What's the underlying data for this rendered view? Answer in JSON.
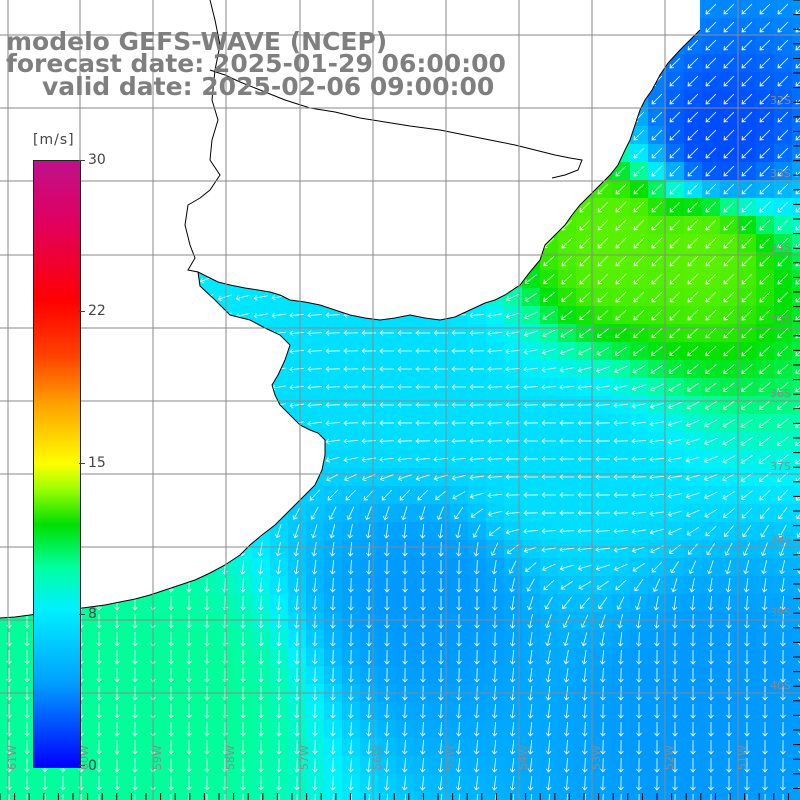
{
  "title": {
    "model": "modelo GEFS-WAVE (NCEP)",
    "forecast": "forecast date: 2025-01-29 06:00:00",
    "valid": "valid date: 2025-02-06 09:00:00"
  },
  "colorbar": {
    "unit": "[m/s]",
    "tick_labels": [
      "30",
      "22",
      "15",
      "8",
      "0"
    ],
    "min": 0,
    "max": 30,
    "colors": [
      "#0000ff",
      "#00a0ff",
      "#00f0ff",
      "#00ffa0",
      "#00e000",
      "#a0ff00",
      "#ffff00",
      "#ffa000",
      "#ff4000",
      "#ff0000",
      "#e00060",
      "#c0108c"
    ]
  },
  "map": {
    "variable": "wind speed",
    "land_color": "#ffffff",
    "coastline_color": "#000000",
    "gridline_color": "#8a8a8a",
    "longitude_labels": [
      "61W",
      "60W",
      "59W",
      "58W",
      "57W",
      "56W",
      "55W",
      "54W",
      "53W",
      "52W",
      "51W"
    ],
    "latitude_labels": [
      "32S",
      "33S",
      "34S",
      "35S",
      "36S",
      "37S",
      "38S",
      "39S",
      "40S"
    ],
    "arrow_color": "#ffffff",
    "regions": {
      "northeast_calm": {
        "speed_ms": 2,
        "direction": "southwest"
      },
      "brazil_shelf_strong": {
        "speed_ms": 13,
        "direction": "southwest"
      },
      "rio_de_la_plata_outflow": {
        "speed_ms": 7,
        "direction": "west"
      },
      "central_atlantic": {
        "speed_ms": 7,
        "direction": "west"
      },
      "southwest_shelf": {
        "speed_ms": 10,
        "direction": "south"
      },
      "southeast_calm": {
        "speed_ms": 4,
        "direction": "south"
      }
    }
  }
}
